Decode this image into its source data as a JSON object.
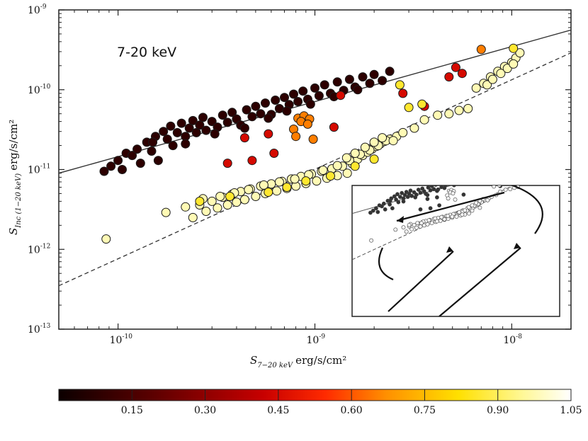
{
  "chart_data": {
    "type": "scatter",
    "panel_label": "7-20 keV",
    "xlabel": {
      "symbol": "S",
      "subscript": "7−20 keV",
      "unit": "erg/s/cm²"
    },
    "ylabel": {
      "symbol": "S",
      "subscript": "Inc (1−20 keV)",
      "unit": "erg/s/cm²"
    },
    "xscale": "log",
    "yscale": "log",
    "xlim": [
      5e-11,
      2e-08
    ],
    "ylim": [
      1e-13,
      1e-09
    ],
    "x_ticks": [
      {
        "value": 1e-10,
        "base": "10",
        "exp": "-10"
      },
      {
        "value": 1e-09,
        "base": "10",
        "exp": "-9"
      },
      {
        "value": 1e-08,
        "base": "10",
        "exp": "-8"
      }
    ],
    "y_ticks": [
      {
        "value": 1e-13,
        "base": "10",
        "exp": "-13"
      },
      {
        "value": 1e-12,
        "base": "10",
        "exp": "-12"
      },
      {
        "value": 1e-11,
        "base": "10",
        "exp": "-11"
      },
      {
        "value": 1e-10,
        "base": "10",
        "exp": "-10"
      },
      {
        "value": 1e-09,
        "base": "10",
        "exp": "-9"
      }
    ],
    "lines": [
      {
        "name": "solid",
        "style": "solid",
        "x": [
          5e-11,
          2e-08
        ],
        "y": [
          9e-12,
          5.6e-10
        ]
      },
      {
        "name": "dashed",
        "style": "dashed",
        "x": [
          5e-11,
          2e-08
        ],
        "y": [
          3.5e-13,
          2.9e-10
        ]
      }
    ],
    "colorbar": {
      "min": 0.0,
      "max": 1.05,
      "tick_values": [
        0.15,
        0.3,
        0.45,
        0.6,
        0.75,
        0.9,
        1.05
      ],
      "tick_labels": [
        "0.15",
        "0.30",
        "0.45",
        "0.60",
        "0.75",
        "0.90",
        "1.05"
      ]
    },
    "series": [
      {
        "name": "upper branch (dark)",
        "color_value": 0.08,
        "x": [
          8.5e-11,
          9.2e-11,
          1e-10,
          1.05e-10,
          1.1e-10,
          1.18e-10,
          1.25e-10,
          1.3e-10,
          1.4e-10,
          1.48e-10,
          1.55e-10,
          1.6e-10,
          1.7e-10,
          1.78e-10,
          1.85e-10,
          1.9e-10,
          2e-10,
          2.1e-10,
          2.2e-10,
          2.3e-10,
          2.4e-10,
          2.5e-10,
          2.6e-10,
          2.7e-10,
          2.8e-10,
          3e-10,
          3.2e-10,
          3.4e-10,
          3.6e-10,
          3.8e-10,
          4e-10,
          4.2e-10,
          4.5e-10,
          4.8e-10,
          5e-10,
          5.3e-10,
          5.6e-10,
          6e-10,
          6.3e-10,
          6.6e-10,
          7e-10,
          7.4e-10,
          7.8e-10,
          8.2e-10,
          8.7e-10,
          9.2e-10,
          1e-09,
          1.05e-09,
          1.12e-09,
          1.2e-09,
          1.3e-09,
          1.4e-09,
          1.5e-09,
          1.6e-09,
          1.75e-09,
          1.9e-09,
          2e-09,
          2.2e-09,
          2.4e-09,
          1.5e-10,
          2.2e-10,
          3.1e-10,
          4.4e-10,
          5.8e-10,
          7.2e-10,
          9.5e-10,
          1.25e-09,
          1.65e-09
        ],
        "y": [
          9.5e-12,
          1.1e-11,
          1.3e-11,
          1e-11,
          1.6e-11,
          1.5e-11,
          1.8e-11,
          1.2e-11,
          2.2e-11,
          1.7e-11,
          2.6e-11,
          1.3e-11,
          3e-11,
          2.4e-11,
          3.5e-11,
          2e-11,
          2.9e-11,
          3.8e-11,
          2.6e-11,
          3.3e-11,
          4.1e-11,
          2.9e-11,
          3.6e-11,
          4.5e-11,
          3.1e-11,
          4e-11,
          3.4e-11,
          4.8e-11,
          3.9e-11,
          5.2e-11,
          4.3e-11,
          3.6e-11,
          5.6e-11,
          4.6e-11,
          6.2e-11,
          5e-11,
          6.8e-11,
          4.9e-11,
          7.4e-11,
          5.8e-11,
          8e-11,
          6.5e-11,
          8.8e-11,
          7.1e-11,
          9.6e-11,
          7.6e-11,
          1.05e-10,
          8.4e-11,
          1.15e-10,
          9e-11,
          1.25e-10,
          9.8e-11,
          1.35e-10,
          1.08e-10,
          1.45e-10,
          1.2e-10,
          1.55e-10,
          1.3e-10,
          1.7e-10,
          2.2e-11,
          2.1e-11,
          2.8e-11,
          3.3e-11,
          4.4e-11,
          5.4e-11,
          6.6e-11,
          8.2e-11,
          1e-10
        ]
      },
      {
        "name": "upper branch (red)",
        "color_value": 0.45,
        "x": [
          3.6e-10,
          4.4e-10,
          4.8e-10,
          5.8e-10,
          6.2e-10,
          1.25e-09,
          1.35e-09,
          2.8e-09,
          3.6e-09,
          5.2e-09,
          5.6e-09,
          4.8e-09
        ],
        "y": [
          1.2e-11,
          2.5e-11,
          1.3e-11,
          2.8e-11,
          1.6e-11,
          3.4e-11,
          8.5e-11,
          9e-11,
          6.2e-11,
          1.9e-10,
          1.6e-10,
          1.45e-10
        ]
      },
      {
        "name": "upper branch (orange)",
        "color_value": 0.65,
        "x": [
          8.2e-10,
          8.8e-10,
          9.4e-10,
          8.5e-10,
          9.2e-10,
          7.8e-10,
          8e-10,
          9.8e-10,
          7e-09
        ],
        "y": [
          4.4e-11,
          4.7e-11,
          4.3e-11,
          4e-11,
          3.7e-11,
          3.2e-11,
          2.6e-11,
          2.4e-11,
          3.2e-10
        ]
      },
      {
        "name": "lower branch (pale)",
        "color_value": 0.98,
        "x": [
          8.7e-11,
          1.75e-10,
          2.2e-10,
          2.4e-10,
          2.6e-10,
          2.8e-10,
          3e-10,
          3.2e-10,
          3.4e-10,
          3.6e-10,
          3.8e-10,
          4e-10,
          4.2e-10,
          4.4e-10,
          4.7e-10,
          5e-10,
          5.3e-10,
          5.6e-10,
          6e-10,
          6.4e-10,
          6.8e-10,
          7.2e-10,
          7.6e-10,
          8e-10,
          8.5e-10,
          9e-10,
          9.6e-10,
          1.02e-09,
          1.08e-09,
          1.15e-09,
          1.22e-09,
          1.3e-09,
          1.38e-09,
          1.46e-09,
          1.55e-09,
          1.65e-09,
          1.75e-09,
          1.85e-09,
          1.95e-09,
          2.05e-09,
          2.15e-09,
          2.25e-09,
          2.4e-09,
          2.6e-09,
          2.8e-09,
          3.2e-09,
          3.6e-09,
          4.2e-09,
          4.8e-09,
          5.4e-09,
          6e-09,
          6.6e-09,
          7.2e-09,
          7.8e-09,
          8.5e-09,
          9.2e-09,
          1e-08,
          1.05e-08,
          1.1e-08,
          2.7e-10,
          3.3e-10,
          3.9e-10,
          4.6e-10,
          5.5e-10,
          6.6e-10,
          7.9e-10,
          9.3e-10,
          1.1e-09,
          1.3e-09,
          1.5e-09,
          1.7e-09,
          1.9e-09,
          2.1e-09,
          2.3e-09,
          1.6e-09,
          1.8e-09,
          2e-09,
          2.2e-09,
          1.45e-09,
          2.5e-09,
          7.5e-09,
          8e-09,
          8.8e-09,
          9.5e-09,
          1.02e-08
        ],
        "y": [
          1.35e-12,
          2.9e-12,
          3.4e-12,
          2.5e-12,
          3.6e-12,
          3e-12,
          4e-12,
          3.3e-12,
          4.5e-12,
          3.6e-12,
          4.9e-12,
          3.9e-12,
          5.3e-12,
          4.2e-12,
          5.7e-12,
          4.6e-12,
          6.2e-12,
          5e-12,
          6.6e-12,
          5.4e-12,
          7.1e-12,
          5.8e-12,
          7.6e-12,
          6.2e-12,
          8.2e-12,
          6.7e-12,
          8.8e-12,
          7.2e-12,
          9.5e-12,
          7.8e-12,
          1.02e-11,
          8.4e-12,
          1.1e-11,
          9e-12,
          1.18e-11,
          1.35e-11,
          1.5e-11,
          1.65e-11,
          1.8e-11,
          1.95e-11,
          2.1e-11,
          2.25e-11,
          2.4e-11,
          2.6e-11,
          2.9e-11,
          3.3e-11,
          4.2e-11,
          4.8e-11,
          5e-11,
          5.5e-11,
          5.8e-11,
          1.05e-10,
          1.2e-10,
          1.45e-10,
          1.7e-10,
          1.95e-10,
          2.2e-10,
          2.5e-10,
          2.9e-10,
          4.3e-12,
          4.6e-12,
          5.1e-12,
          5.6e-12,
          6.4e-12,
          7e-12,
          7.6e-12,
          8.6e-12,
          9.8e-12,
          1.12e-11,
          1.3e-11,
          1.55e-11,
          1.75e-11,
          2e-11,
          2.3e-11,
          1.6e-11,
          1.9e-11,
          2.2e-11,
          2.5e-11,
          1.4e-11,
          2.3e-11,
          1.15e-10,
          1.35e-10,
          1.6e-10,
          1.85e-10,
          2.1e-10
        ]
      },
      {
        "name": "lower branch (yellow)",
        "color_value": 0.86,
        "x": [
          2.6e-10,
          3.7e-10,
          5.8e-10,
          7.2e-10,
          9e-10,
          1.2e-09,
          1.6e-09,
          2e-09,
          2.7e-09,
          3e-09,
          3.5e-09,
          1.02e-08
        ],
        "y": [
          4e-12,
          4.6e-12,
          5.2e-12,
          6e-12,
          7.2e-12,
          8.3e-12,
          1.1e-11,
          1.35e-11,
          1.15e-10,
          6e-11,
          6.6e-11,
          3.3e-10
        ]
      }
    ]
  }
}
